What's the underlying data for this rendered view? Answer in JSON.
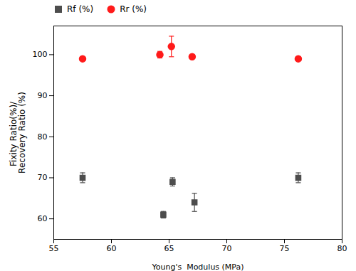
{
  "chart_data": {
    "type": "scatter",
    "xlabel": "Young's  Modulus (MPa)",
    "ylabel": "Fixity Ratio(%)/ \nRecovery Ratio (%)",
    "xlim": [
      55,
      80
    ],
    "ylim": [
      55,
      107
    ],
    "xticks": [
      55,
      60,
      65,
      70,
      75,
      80
    ],
    "yticks": [
      60,
      70,
      80,
      90,
      100
    ],
    "legend": "top",
    "series": [
      {
        "name": "Rf (%)",
        "color": "#4d4d4d",
        "marker": "square",
        "x": [
          57.5,
          64.5,
          65.3,
          67.2,
          76.2
        ],
        "values": [
          70,
          61,
          69,
          64,
          70
        ],
        "yerr": [
          1.2,
          0.8,
          1.0,
          2.2,
          1.2
        ]
      },
      {
        "name": "Rr (%)",
        "color": "#ff1a1a",
        "marker": "circle",
        "x": [
          57.5,
          64.2,
          65.2,
          67.0,
          76.2
        ],
        "values": [
          99,
          100,
          102,
          99.5,
          99
        ],
        "yerr": [
          0.4,
          0.8,
          2.5,
          0.4,
          0.4
        ]
      }
    ]
  }
}
